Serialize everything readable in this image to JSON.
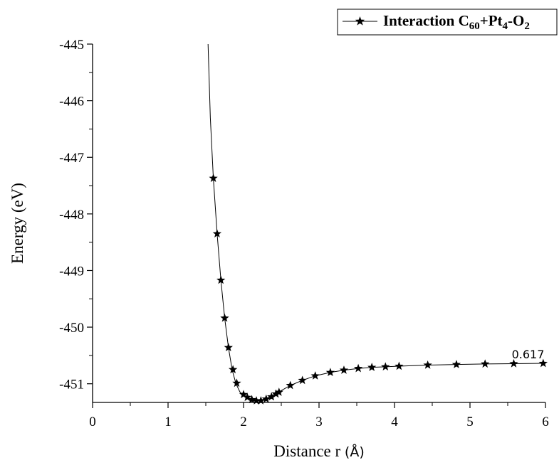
{
  "chart_data": {
    "type": "line",
    "title": "",
    "xlabel": "Distance r",
    "xlabel_unit": "(Å)",
    "ylabel": "Energy (eV)",
    "xlim": [
      0,
      6
    ],
    "ylim": [
      -451.33,
      -445
    ],
    "xticks": [
      "0",
      "1",
      "2",
      "3",
      "4",
      "5",
      "6"
    ],
    "yticks": [
      "-445",
      "-446",
      "-447",
      "-448",
      "-449",
      "-450",
      "-451"
    ],
    "grid": false,
    "legend_position": "top-right",
    "series": [
      {
        "name": "Interaction C60+Pt4-O2",
        "marker": "star",
        "curve_x": [
          1.53,
          1.56,
          1.6,
          1.65,
          1.7,
          1.75,
          1.8,
          1.85,
          1.9,
          1.95,
          2.0,
          2.05,
          2.1,
          2.15,
          2.2,
          2.25,
          2.3,
          2.35,
          2.4,
          2.5,
          2.62,
          2.78,
          2.95,
          3.15,
          3.33,
          3.52,
          3.7,
          3.88,
          4.06,
          4.44,
          4.82,
          5.2,
          5.58,
          5.97
        ],
        "curve_y": [
          -445.0,
          -446.3,
          -447.37,
          -448.35,
          -449.17,
          -449.84,
          -450.36,
          -450.76,
          -451.0,
          -451.14,
          -451.21,
          -451.26,
          -451.29,
          -451.3,
          -451.3,
          -451.28,
          -451.26,
          -451.23,
          -451.19,
          -451.12,
          -451.03,
          -450.94,
          -450.86,
          -450.8,
          -450.76,
          -450.73,
          -450.71,
          -450.7,
          -450.69,
          -450.67,
          -450.66,
          -450.65,
          -450.645,
          -450.64
        ],
        "marker_x": [
          1.6,
          1.65,
          1.7,
          1.75,
          1.8,
          1.86,
          1.91,
          2.0,
          2.05,
          2.11,
          2.17,
          2.23,
          2.3,
          2.37,
          2.43,
          2.47,
          2.62,
          2.78,
          2.95,
          3.15,
          3.33,
          3.52,
          3.7,
          3.88,
          4.06,
          4.44,
          4.82,
          5.2,
          5.58,
          5.97
        ],
        "marker_y": [
          -447.37,
          -448.35,
          -449.17,
          -449.84,
          -450.36,
          -450.75,
          -450.99,
          -451.19,
          -451.24,
          -451.28,
          -451.3,
          -451.3,
          -451.27,
          -451.23,
          -451.18,
          -451.15,
          -451.03,
          -450.94,
          -450.86,
          -450.8,
          -450.76,
          -450.73,
          -450.71,
          -450.7,
          -450.69,
          -450.67,
          -450.66,
          -450.65,
          -450.645,
          -450.64
        ]
      }
    ],
    "annotations": [
      {
        "text": "0.617",
        "x": 5.58,
        "y": -450.45
      }
    ],
    "legend": {
      "label_main": "Interaction C",
      "label_sub1": "60",
      "label_mid": "+Pt",
      "label_sub2": "4",
      "label_mid2": "-O",
      "label_sub3": "2"
    }
  }
}
